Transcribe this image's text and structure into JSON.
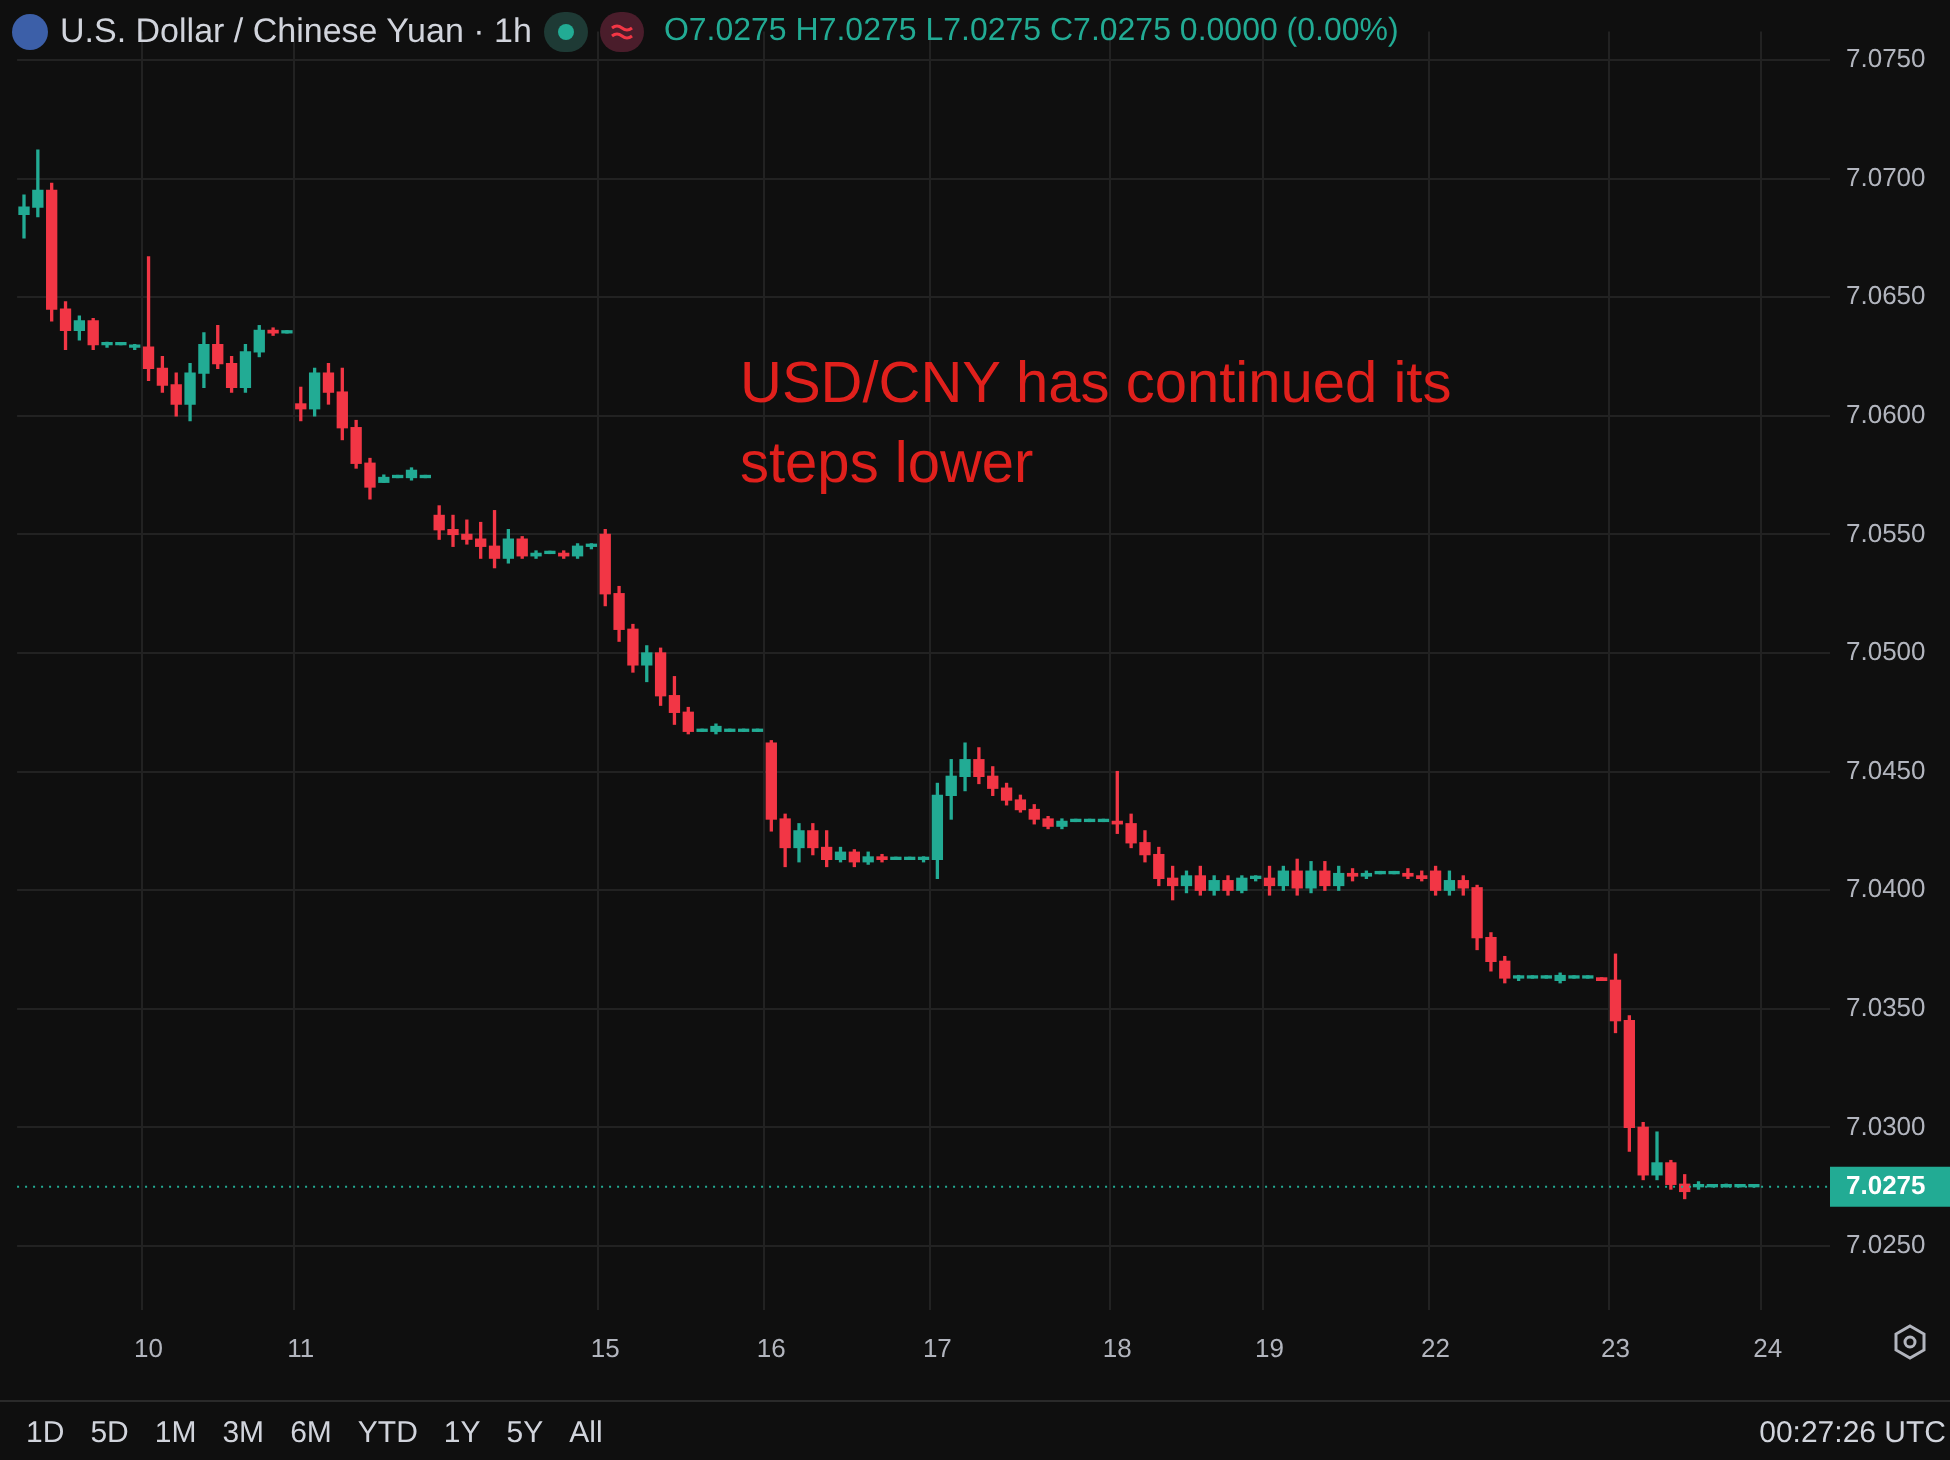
{
  "chart_data": {
    "type": "candlestick",
    "title": "U.S. Dollar / Chinese Yuan · 1h",
    "annotations": [
      "O7.0275 H7.0275 L7.0275 C7.0275 0.0000 (0.00%)",
      "USD/CNY has continued its steps lower",
      "1D",
      "5D",
      "1M",
      "3M",
      "6M",
      "YTD",
      "1Y",
      "5Y",
      "All",
      "00:27:26 UTC"
    ],
    "categories": [
      null,
      null,
      null,
      null,
      null,
      null,
      null,
      null,
      null,
      "10",
      null,
      null,
      null,
      null,
      null,
      null,
      null,
      null,
      null,
      null,
      "11",
      null,
      null,
      null,
      null,
      null,
      null,
      null,
      null,
      null,
      null,
      null,
      null,
      null,
      null,
      null,
      null,
      null,
      null,
      null,
      null,
      null,
      "15",
      null,
      null,
      null,
      null,
      null,
      null,
      null,
      null,
      null,
      null,
      null,
      "16",
      null,
      null,
      null,
      null,
      null,
      null,
      null,
      null,
      null,
      null,
      null,
      "17",
      null,
      null,
      null,
      null,
      null,
      null,
      null,
      null,
      null,
      null,
      null,
      null,
      "18",
      null,
      null,
      null,
      null,
      null,
      null,
      null,
      null,
      null,
      null,
      "19",
      null,
      null,
      null,
      null,
      null,
      null,
      null,
      null,
      null,
      null,
      null,
      "22",
      null,
      null,
      null,
      null,
      null,
      null,
      null,
      null,
      null,
      null,
      null,
      null,
      "23",
      null,
      null,
      null,
      null,
      null,
      null,
      null,
      null,
      null,
      null,
      "24",
      null,
      null,
      null,
      null
    ],
    "ohlc": [
      [
        7.0685,
        7.0693,
        7.0675,
        7.0688
      ],
      [
        7.0688,
        7.0712,
        7.0684,
        7.0695
      ],
      [
        7.0695,
        7.0698,
        7.064,
        7.0645
      ],
      [
        7.0645,
        7.0648,
        7.0628,
        7.0636
      ],
      [
        7.0636,
        7.0642,
        7.0632,
        7.064
      ],
      [
        7.064,
        7.0641,
        7.0628,
        7.063
      ],
      [
        7.063,
        7.0631,
        7.0629,
        7.063
      ],
      [
        7.063,
        7.063,
        7.063,
        7.063
      ],
      [
        7.0629,
        7.063,
        7.0628,
        7.0629
      ],
      [
        7.0629,
        7.0667,
        7.0615,
        7.062
      ],
      [
        7.062,
        7.0625,
        7.061,
        7.0613
      ],
      [
        7.0613,
        7.0618,
        7.06,
        7.0605
      ],
      [
        7.0605,
        7.0622,
        7.0598,
        7.0618
      ],
      [
        7.0618,
        7.0635,
        7.0612,
        7.063
      ],
      [
        7.063,
        7.0638,
        7.062,
        7.0622
      ],
      [
        7.0622,
        7.0625,
        7.061,
        7.0612
      ],
      [
        7.0612,
        7.063,
        7.061,
        7.0627
      ],
      [
        7.0627,
        7.0638,
        7.0625,
        7.0636
      ],
      [
        7.0636,
        7.0637,
        7.0634,
        7.0635
      ],
      [
        7.0635,
        7.0635,
        7.0635,
        7.0635
      ],
      [
        7.0605,
        7.0612,
        7.0598,
        7.0603
      ],
      [
        7.0603,
        7.062,
        7.06,
        7.0618
      ],
      [
        7.0618,
        7.0622,
        7.0605,
        7.061
      ],
      [
        7.061,
        7.062,
        7.059,
        7.0595
      ],
      [
        7.0595,
        7.0598,
        7.0578,
        7.058
      ],
      [
        7.058,
        7.0582,
        7.0565,
        7.057
      ],
      [
        7.0572,
        7.0575,
        7.0572,
        7.0574
      ],
      [
        7.0574,
        7.0574,
        7.0574,
        7.0574
      ],
      [
        7.0574,
        7.0578,
        7.0573,
        7.0577
      ],
      [
        7.0574,
        7.0574,
        7.0574,
        7.0574
      ],
      [
        7.0558,
        7.0562,
        7.0548,
        7.0552
      ],
      [
        7.0552,
        7.0558,
        7.0545,
        7.055
      ],
      [
        7.055,
        7.0556,
        7.0546,
        7.0548
      ],
      [
        7.0548,
        7.0555,
        7.054,
        7.0545
      ],
      [
        7.0545,
        7.056,
        7.0536,
        7.054
      ],
      [
        7.054,
        7.0552,
        7.0538,
        7.0548
      ],
      [
        7.0548,
        7.0549,
        7.054,
        7.0541
      ],
      [
        7.0541,
        7.0543,
        7.054,
        7.0542
      ],
      [
        7.0542,
        7.0542,
        7.0542,
        7.0542
      ],
      [
        7.0542,
        7.0543,
        7.054,
        7.0541
      ],
      [
        7.0541,
        7.0546,
        7.054,
        7.0545
      ],
      [
        7.0545,
        7.0546,
        7.0544,
        7.0545
      ],
      [
        7.055,
        7.0552,
        7.052,
        7.0525
      ],
      [
        7.0525,
        7.0528,
        7.0505,
        7.051
      ],
      [
        7.051,
        7.0512,
        7.0492,
        7.0495
      ],
      [
        7.0495,
        7.0503,
        7.0488,
        7.05
      ],
      [
        7.05,
        7.0502,
        7.0478,
        7.0482
      ],
      [
        7.0482,
        7.049,
        7.047,
        7.0475
      ],
      [
        7.0475,
        7.0477,
        7.0466,
        7.0467
      ],
      [
        7.0467,
        7.0467,
        7.0467,
        7.0467
      ],
      [
        7.0467,
        7.047,
        7.0466,
        7.0469
      ],
      [
        7.0467,
        7.0467,
        7.0467,
        7.0467
      ],
      [
        7.0467,
        7.0467,
        7.0467,
        7.0467
      ],
      [
        7.0467,
        7.0467,
        7.0467,
        7.0467
      ],
      [
        7.0462,
        7.0463,
        7.0425,
        7.043
      ],
      [
        7.043,
        7.0432,
        7.041,
        7.0418
      ],
      [
        7.0418,
        7.0428,
        7.0412,
        7.0425
      ],
      [
        7.0425,
        7.0428,
        7.0415,
        7.0418
      ],
      [
        7.0418,
        7.0425,
        7.041,
        7.0413
      ],
      [
        7.0413,
        7.0418,
        7.0412,
        7.0416
      ],
      [
        7.0416,
        7.0417,
        7.041,
        7.0412
      ],
      [
        7.0412,
        7.0416,
        7.0411,
        7.0414
      ],
      [
        7.0414,
        7.0415,
        7.0412,
        7.0413
      ],
      [
        7.0413,
        7.0413,
        7.0413,
        7.0413
      ],
      [
        7.0413,
        7.0413,
        7.0413,
        7.0413
      ],
      [
        7.0413,
        7.0414,
        7.0412,
        7.0413
      ],
      [
        7.0413,
        7.0445,
        7.0405,
        7.044
      ],
      [
        7.044,
        7.0455,
        7.043,
        7.0448
      ],
      [
        7.0448,
        7.0462,
        7.0442,
        7.0455
      ],
      [
        7.0455,
        7.046,
        7.0445,
        7.0448
      ],
      [
        7.0448,
        7.0452,
        7.044,
        7.0443
      ],
      [
        7.0443,
        7.0445,
        7.0436,
        7.0438
      ],
      [
        7.0438,
        7.044,
        7.0433,
        7.0434
      ],
      [
        7.0434,
        7.0436,
        7.0428,
        7.043
      ],
      [
        7.043,
        7.0431,
        7.0426,
        7.0427
      ],
      [
        7.0427,
        7.043,
        7.0426,
        7.0429
      ],
      [
        7.0429,
        7.0429,
        7.0429,
        7.0429
      ],
      [
        7.0429,
        7.0429,
        7.0429,
        7.0429
      ],
      [
        7.0429,
        7.0429,
        7.0429,
        7.0429
      ],
      [
        7.0429,
        7.045,
        7.0424,
        7.0428
      ],
      [
        7.0428,
        7.0432,
        7.0418,
        7.042
      ],
      [
        7.042,
        7.0425,
        7.0412,
        7.0415
      ],
      [
        7.0415,
        7.0418,
        7.0402,
        7.0405
      ],
      [
        7.0405,
        7.041,
        7.0396,
        7.0402
      ],
      [
        7.0402,
        7.0408,
        7.0399,
        7.0406
      ],
      [
        7.0406,
        7.041,
        7.0398,
        7.04
      ],
      [
        7.04,
        7.0406,
        7.0398,
        7.0404
      ],
      [
        7.0404,
        7.0406,
        7.0398,
        7.04
      ],
      [
        7.04,
        7.0406,
        7.0399,
        7.0405
      ],
      [
        7.0405,
        7.0406,
        7.0404,
        7.0405
      ],
      [
        7.0405,
        7.041,
        7.0398,
        7.0402
      ],
      [
        7.0402,
        7.041,
        7.04,
        7.0408
      ],
      [
        7.0408,
        7.0413,
        7.0398,
        7.0401
      ],
      [
        7.0401,
        7.0412,
        7.0399,
        7.0408
      ],
      [
        7.0408,
        7.0412,
        7.04,
        7.0402
      ],
      [
        7.0402,
        7.041,
        7.04,
        7.0407
      ],
      [
        7.0407,
        7.0409,
        7.0404,
        7.0406
      ],
      [
        7.0406,
        7.0408,
        7.0405,
        7.0407
      ],
      [
        7.0407,
        7.0407,
        7.0407,
        7.0407
      ],
      [
        7.0407,
        7.0407,
        7.0407,
        7.0407
      ],
      [
        7.0407,
        7.0409,
        7.0405,
        7.0406
      ],
      [
        7.0406,
        7.0408,
        7.0404,
        7.0405
      ],
      [
        7.0408,
        7.041,
        7.0398,
        7.04
      ],
      [
        7.04,
        7.0408,
        7.0398,
        7.0404
      ],
      [
        7.0404,
        7.0406,
        7.0398,
        7.0401
      ],
      [
        7.0401,
        7.0402,
        7.0375,
        7.038
      ],
      [
        7.038,
        7.0382,
        7.0366,
        7.037
      ],
      [
        7.037,
        7.0372,
        7.0361,
        7.0363
      ],
      [
        7.0363,
        7.0364,
        7.0362,
        7.0363
      ],
      [
        7.0363,
        7.0363,
        7.0363,
        7.0363
      ],
      [
        7.0363,
        7.0363,
        7.0363,
        7.0363
      ],
      [
        7.0362,
        7.0365,
        7.0361,
        7.0364
      ],
      [
        7.0363,
        7.0363,
        7.0363,
        7.0363
      ],
      [
        7.0363,
        7.0363,
        7.0363,
        7.0363
      ],
      [
        7.0363,
        7.0363,
        7.0362,
        7.0362
      ],
      [
        7.0362,
        7.0373,
        7.034,
        7.0345
      ],
      [
        7.0345,
        7.0347,
        7.029,
        7.03
      ],
      [
        7.03,
        7.0302,
        7.0278,
        7.028
      ],
      [
        7.028,
        7.0298,
        7.0278,
        7.0285
      ],
      [
        7.0285,
        7.0286,
        7.0274,
        7.0276
      ],
      [
        7.0276,
        7.028,
        7.027,
        7.0273
      ],
      [
        7.0275,
        7.0277,
        7.0274,
        7.0275
      ],
      [
        7.0275,
        7.0275,
        7.0275,
        7.0275
      ],
      [
        7.0275,
        7.0276,
        7.0275,
        7.0275
      ],
      [
        7.0275,
        7.0275,
        7.0275,
        7.0275
      ],
      [
        7.0275,
        7.0275,
        7.0275,
        7.0275
      ],
      null,
      null,
      null,
      null,
      null
    ],
    "ylim": [
      7.0223,
      7.0762
    ],
    "yticks": [
      {
        "value": 7.025,
        "label": "7.0250"
      },
      {
        "value": 7.03,
        "label": "7.0300"
      },
      {
        "value": 7.035,
        "label": "7.0350"
      },
      {
        "value": 7.04,
        "label": "7.0400"
      },
      {
        "value": 7.045,
        "label": "7.0450"
      },
      {
        "value": 7.05,
        "label": "7.0500"
      },
      {
        "value": 7.055,
        "label": "7.0550"
      },
      {
        "value": 7.06,
        "label": "7.0600"
      },
      {
        "value": 7.065,
        "label": "7.0650"
      },
      {
        "value": 7.07,
        "label": "7.0700"
      },
      {
        "value": 7.075,
        "label": "7.0750"
      }
    ],
    "ref_lines": [
      {
        "axis": "y",
        "value": 7.0275,
        "label": "7.0275",
        "color": "#22ab94",
        "line_style": "dotted"
      }
    ],
    "grid": true,
    "legend": false
  }
}
